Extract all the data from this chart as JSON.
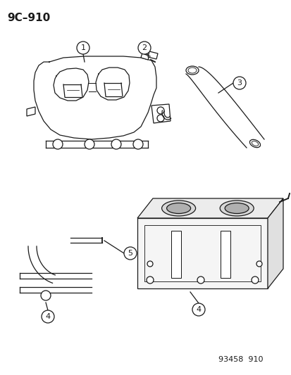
{
  "title": "9C–910",
  "footer": "93458  910",
  "bg_color": "#ffffff",
  "line_color": "#1a1a1a",
  "title_fontsize": 11,
  "footer_fontsize": 8,
  "label_fontsize": 8
}
